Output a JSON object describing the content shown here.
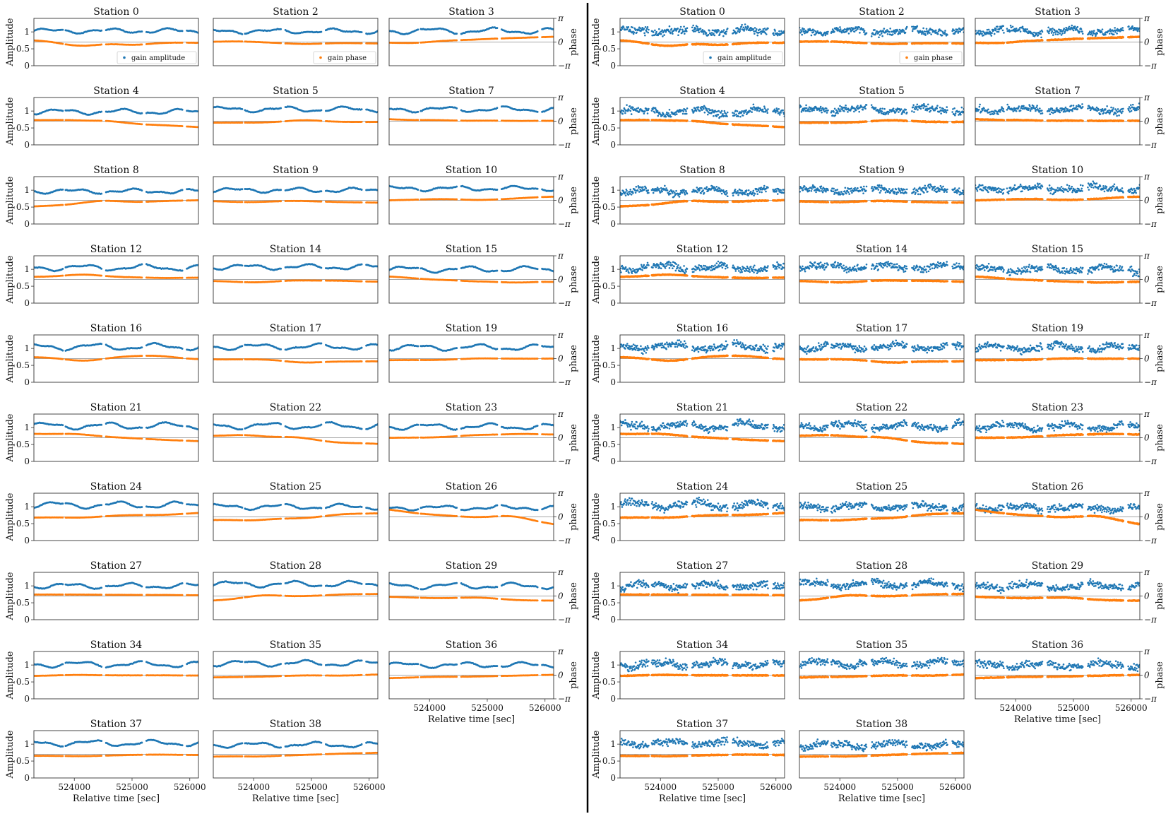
{
  "figure": {
    "panels": [
      {
        "name": "left",
        "variant": "smooth"
      },
      {
        "name": "right",
        "variant": "noisy"
      }
    ],
    "y_label_left": "Amplitude",
    "y_label_right": "phase",
    "x_label": "Relative time [sec]",
    "x_tick_labels": [
      "524000",
      "525000",
      "526000"
    ],
    "amp_tick_labels": [
      "0",
      "0.5",
      "1"
    ],
    "phase_tick_labels": [
      "π",
      "0",
      "−π"
    ],
    "legend": {
      "amplitude": "gain amplitude",
      "phase": "gain phase"
    },
    "colors": {
      "amplitude": "#1f77b4",
      "phase": "#ff7f0e",
      "frame": "#333333",
      "divider": "#000000"
    }
  },
  "chart_data": {
    "type": "scatter",
    "description": "Per-station gain solutions vs time; blue = gain amplitude (left axis, 0–1.4), orange = gain phase (right axis, −π to π). Two panels: left smooth, right noisy.",
    "xlim": [
      523300,
      526150
    ],
    "ylim_amplitude": [
      0,
      1.4
    ],
    "ylim_phase": [
      "-pi",
      "pi"
    ],
    "x_ticks": [
      524000,
      525000,
      526000
    ],
    "legend_placement": "lower right (first row, columns 1–2)",
    "time_segments": [
      [
        523300,
        523800
      ],
      [
        523850,
        524470
      ],
      [
        524550,
        525170
      ],
      [
        525250,
        525870
      ],
      [
        525950,
        526150
      ]
    ],
    "stations": [
      {
        "title": "Station 0",
        "amp_base": 1.03,
        "amp_wave": 0.05,
        "phase_left": 0.25,
        "phase_right": -0.1,
        "phase_bumps": [
          [
            0.6,
            -0.6
          ],
          [
            0.25,
            -0.45
          ],
          [
            0.32,
            -0.35
          ]
        ]
      },
      {
        "title": "Station 2",
        "amp_base": 1.02,
        "amp_wave": 0.05,
        "phase_left": 0.0,
        "phase_right": -0.2,
        "phase_bumps": [
          [
            0.15,
            0.15
          ],
          [
            0.55,
            -0.35
          ],
          [
            0.8,
            -0.1
          ]
        ]
      },
      {
        "title": "Station 3",
        "amp_base": 1.03,
        "amp_wave": 0.07,
        "phase_left": 0.0,
        "phase_right": 0.7,
        "phase_bumps": [
          [
            0.15,
            -0.25
          ],
          [
            0.45,
            0.25
          ],
          [
            0.7,
            0.5
          ]
        ]
      },
      {
        "title": "Station 4",
        "amp_base": 0.98,
        "amp_wave": 0.06,
        "phase_left": 0.1,
        "phase_right": -0.8,
        "phase_bumps": [
          [
            0.2,
            0.25
          ],
          [
            0.45,
            0.2
          ],
          [
            0.8,
            -0.5
          ]
        ]
      },
      {
        "title": "Station 5",
        "amp_base": 1.05,
        "amp_wave": 0.06,
        "phase_left": -0.2,
        "phase_right": -0.1,
        "phase_bumps": [
          [
            0.3,
            -0.2
          ],
          [
            0.55,
            0.3
          ],
          [
            0.8,
            -0.1
          ]
        ]
      },
      {
        "title": "Station 7",
        "amp_base": 1.05,
        "amp_wave": 0.06,
        "phase_left": 0.3,
        "phase_right": 0.05,
        "phase_bumps": [
          [
            0.15,
            0.1
          ],
          [
            0.45,
            0.0
          ],
          [
            0.75,
            0.0
          ]
        ]
      },
      {
        "title": "Station 8",
        "amp_base": 0.97,
        "amp_wave": 0.05,
        "phase_left": -0.8,
        "phase_right": 0.0,
        "phase_bumps": [
          [
            0.4,
            0.1
          ],
          [
            0.5,
            -0.3
          ],
          [
            0.8,
            -0.05
          ]
        ]
      },
      {
        "title": "Station 9",
        "amp_base": 1.0,
        "amp_wave": 0.05,
        "phase_left": -0.1,
        "phase_right": -0.3,
        "phase_bumps": [
          [
            0.2,
            -0.3
          ],
          [
            0.5,
            0.0
          ],
          [
            0.7,
            -0.2
          ]
        ]
      },
      {
        "title": "Station 10",
        "amp_base": 1.05,
        "amp_wave": 0.05,
        "phase_left": 0.0,
        "phase_right": 0.5,
        "phase_bumps": [
          [
            0.3,
            0.2
          ],
          [
            0.55,
            -0.05
          ],
          [
            0.75,
            0.2
          ]
        ]
      },
      {
        "title": "Station 12",
        "amp_base": 1.05,
        "amp_wave": 0.07,
        "phase_left": 0.35,
        "phase_right": 0.25,
        "phase_bumps": [
          [
            0.3,
            0.85
          ],
          [
            0.6,
            0.3
          ],
          [
            0.8,
            0.15
          ]
        ]
      },
      {
        "title": "Station 14",
        "amp_base": 1.07,
        "amp_wave": 0.06,
        "phase_left": -0.2,
        "phase_right": -0.3,
        "phase_bumps": [
          [
            0.25,
            -0.5
          ],
          [
            0.5,
            -0.05
          ],
          [
            0.75,
            -0.1
          ]
        ]
      },
      {
        "title": "Station 15",
        "amp_base": 1.0,
        "amp_wave": 0.07,
        "phase_left": 0.4,
        "phase_right": -0.3,
        "phase_bumps": [
          [
            0.25,
            -0.1
          ],
          [
            0.5,
            -0.35
          ],
          [
            0.75,
            -0.55
          ]
        ]
      },
      {
        "title": "Station 16",
        "amp_base": 1.05,
        "amp_wave": 0.08,
        "phase_left": 0.2,
        "phase_right": -0.1,
        "phase_bumps": [
          [
            0.3,
            -0.55
          ],
          [
            0.55,
            0.35
          ],
          [
            0.75,
            0.55
          ]
        ]
      },
      {
        "title": "Station 17",
        "amp_base": 1.05,
        "amp_wave": 0.07,
        "phase_left": -0.1,
        "phase_right": -0.35,
        "phase_bumps": [
          [
            0.3,
            -0.05
          ],
          [
            0.55,
            -0.7
          ],
          [
            0.8,
            -0.4
          ]
        ]
      },
      {
        "title": "Station 19",
        "amp_base": 1.03,
        "amp_wave": 0.07,
        "phase_left": -0.2,
        "phase_right": 0.0,
        "phase_bumps": [
          [
            0.3,
            -0.2
          ],
          [
            0.55,
            0.1
          ],
          [
            0.8,
            0.0
          ]
        ]
      },
      {
        "title": "Station 21",
        "amp_base": 1.05,
        "amp_wave": 0.08,
        "phase_left": 0.5,
        "phase_right": -0.45,
        "phase_bumps": [
          [
            0.25,
            0.65
          ],
          [
            0.55,
            0.0
          ],
          [
            0.8,
            -0.3
          ]
        ]
      },
      {
        "title": "Station 22",
        "amp_base": 1.05,
        "amp_wave": 0.08,
        "phase_left": 0.2,
        "phase_right": -0.8,
        "phase_bumps": [
          [
            0.2,
            0.55
          ],
          [
            0.5,
            0.3
          ],
          [
            0.75,
            -0.7
          ]
        ]
      },
      {
        "title": "Station 23",
        "amp_base": 1.03,
        "amp_wave": 0.07,
        "phase_left": 0.0,
        "phase_right": 0.4,
        "phase_bumps": [
          [
            0.25,
            0.0
          ],
          [
            0.55,
            0.45
          ],
          [
            0.8,
            0.6
          ]
        ]
      },
      {
        "title": "Station 24",
        "amp_base": 1.05,
        "amp_wave": 0.08,
        "phase_left": -0.1,
        "phase_right": 0.55,
        "phase_bumps": [
          [
            0.3,
            -0.2
          ],
          [
            0.6,
            0.25
          ],
          [
            0.8,
            0.2
          ]
        ]
      },
      {
        "title": "Station 25",
        "amp_base": 1.0,
        "amp_wave": 0.06,
        "phase_left": -0.4,
        "phase_right": 0.45,
        "phase_bumps": [
          [
            0.25,
            -0.6
          ],
          [
            0.55,
            -0.3
          ],
          [
            0.8,
            0.45
          ]
        ]
      },
      {
        "title": "Station 26",
        "amp_base": 0.97,
        "amp_wave": 0.05,
        "phase_left": 1.0,
        "phase_right": -1.0,
        "phase_bumps": [
          [
            0.2,
            0.3
          ],
          [
            0.45,
            0.0
          ],
          [
            0.75,
            0.45
          ]
        ]
      },
      {
        "title": "Station 27",
        "amp_base": 1.0,
        "amp_wave": 0.06,
        "phase_left": 0.2,
        "phase_right": 0.1,
        "phase_bumps": [
          [
            0.3,
            0.2
          ],
          [
            0.55,
            0.15
          ],
          [
            0.8,
            0.15
          ]
        ]
      },
      {
        "title": "Station 28",
        "amp_base": 1.05,
        "amp_wave": 0.07,
        "phase_left": -0.6,
        "phase_right": 0.25,
        "phase_bumps": [
          [
            0.3,
            0.35
          ],
          [
            0.55,
            0.0
          ],
          [
            0.8,
            0.3
          ]
        ]
      },
      {
        "title": "Station 29",
        "amp_base": 1.0,
        "amp_wave": 0.07,
        "phase_left": -0.1,
        "phase_right": -0.6,
        "phase_bumps": [
          [
            0.25,
            -0.3
          ],
          [
            0.55,
            -0.1
          ],
          [
            0.8,
            -0.6
          ]
        ]
      },
      {
        "title": "Station 34",
        "amp_base": 1.02,
        "amp_wave": 0.07,
        "phase_left": -0.1,
        "phase_right": -0.05,
        "phase_bumps": [
          [
            0.25,
            0.1
          ],
          [
            0.5,
            0.0
          ],
          [
            0.75,
            0.0
          ]
        ]
      },
      {
        "title": "Station 35",
        "amp_base": 1.05,
        "amp_wave": 0.07,
        "phase_left": -0.3,
        "phase_right": 0.1,
        "phase_bumps": [
          [
            0.3,
            -0.2
          ],
          [
            0.55,
            0.0
          ],
          [
            0.8,
            -0.1
          ]
        ]
      },
      {
        "title": "Station 36",
        "amp_base": 1.0,
        "amp_wave": 0.06,
        "phase_left": -0.4,
        "phase_right": 0.05,
        "phase_bumps": [
          [
            0.25,
            -0.2
          ],
          [
            0.5,
            -0.2
          ],
          [
            0.7,
            -0.1
          ]
        ]
      },
      {
        "title": "Station 37",
        "amp_base": 1.03,
        "amp_wave": 0.07,
        "phase_left": -0.2,
        "phase_right": -0.1,
        "phase_bumps": [
          [
            0.3,
            -0.3
          ],
          [
            0.55,
            -0.1
          ],
          [
            0.75,
            0.0
          ]
        ]
      },
      {
        "title": "Station 38",
        "amp_base": 0.98,
        "amp_wave": 0.06,
        "phase_left": -0.3,
        "phase_right": 0.2,
        "phase_bumps": [
          [
            0.3,
            -0.35
          ],
          [
            0.55,
            -0.1
          ],
          [
            0.8,
            0.1
          ]
        ]
      }
    ]
  }
}
